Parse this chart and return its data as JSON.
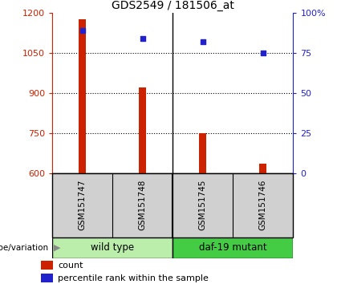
{
  "title": "GDS2549 / 181506_at",
  "samples": [
    "GSM151747",
    "GSM151748",
    "GSM151745",
    "GSM151746"
  ],
  "bar_values": [
    1175,
    920,
    750,
    635
  ],
  "percentile_values": [
    89,
    84,
    82,
    75
  ],
  "y_min": 600,
  "y_max": 1200,
  "y_ticks": [
    600,
    750,
    900,
    1050,
    1200
  ],
  "y2_ticks": [
    0,
    25,
    50,
    75,
    100
  ],
  "bar_color": "#cc2200",
  "scatter_color": "#2222cc",
  "groups": [
    {
      "label": "wild type",
      "indices": [
        0,
        1
      ],
      "color": "#bbeeaa"
    },
    {
      "label": "daf-19 mutant",
      "indices": [
        2,
        3
      ],
      "color": "#44cc44"
    }
  ],
  "group_label_prefix": "genotype/variation",
  "tick_label_color_left": "#cc2200",
  "tick_label_color_right": "#2222cc",
  "sample_box_color": "#d0d0d0",
  "bar_width": 0.12,
  "legend_count_label": "count",
  "legend_pct_label": "percentile rank within the sample"
}
